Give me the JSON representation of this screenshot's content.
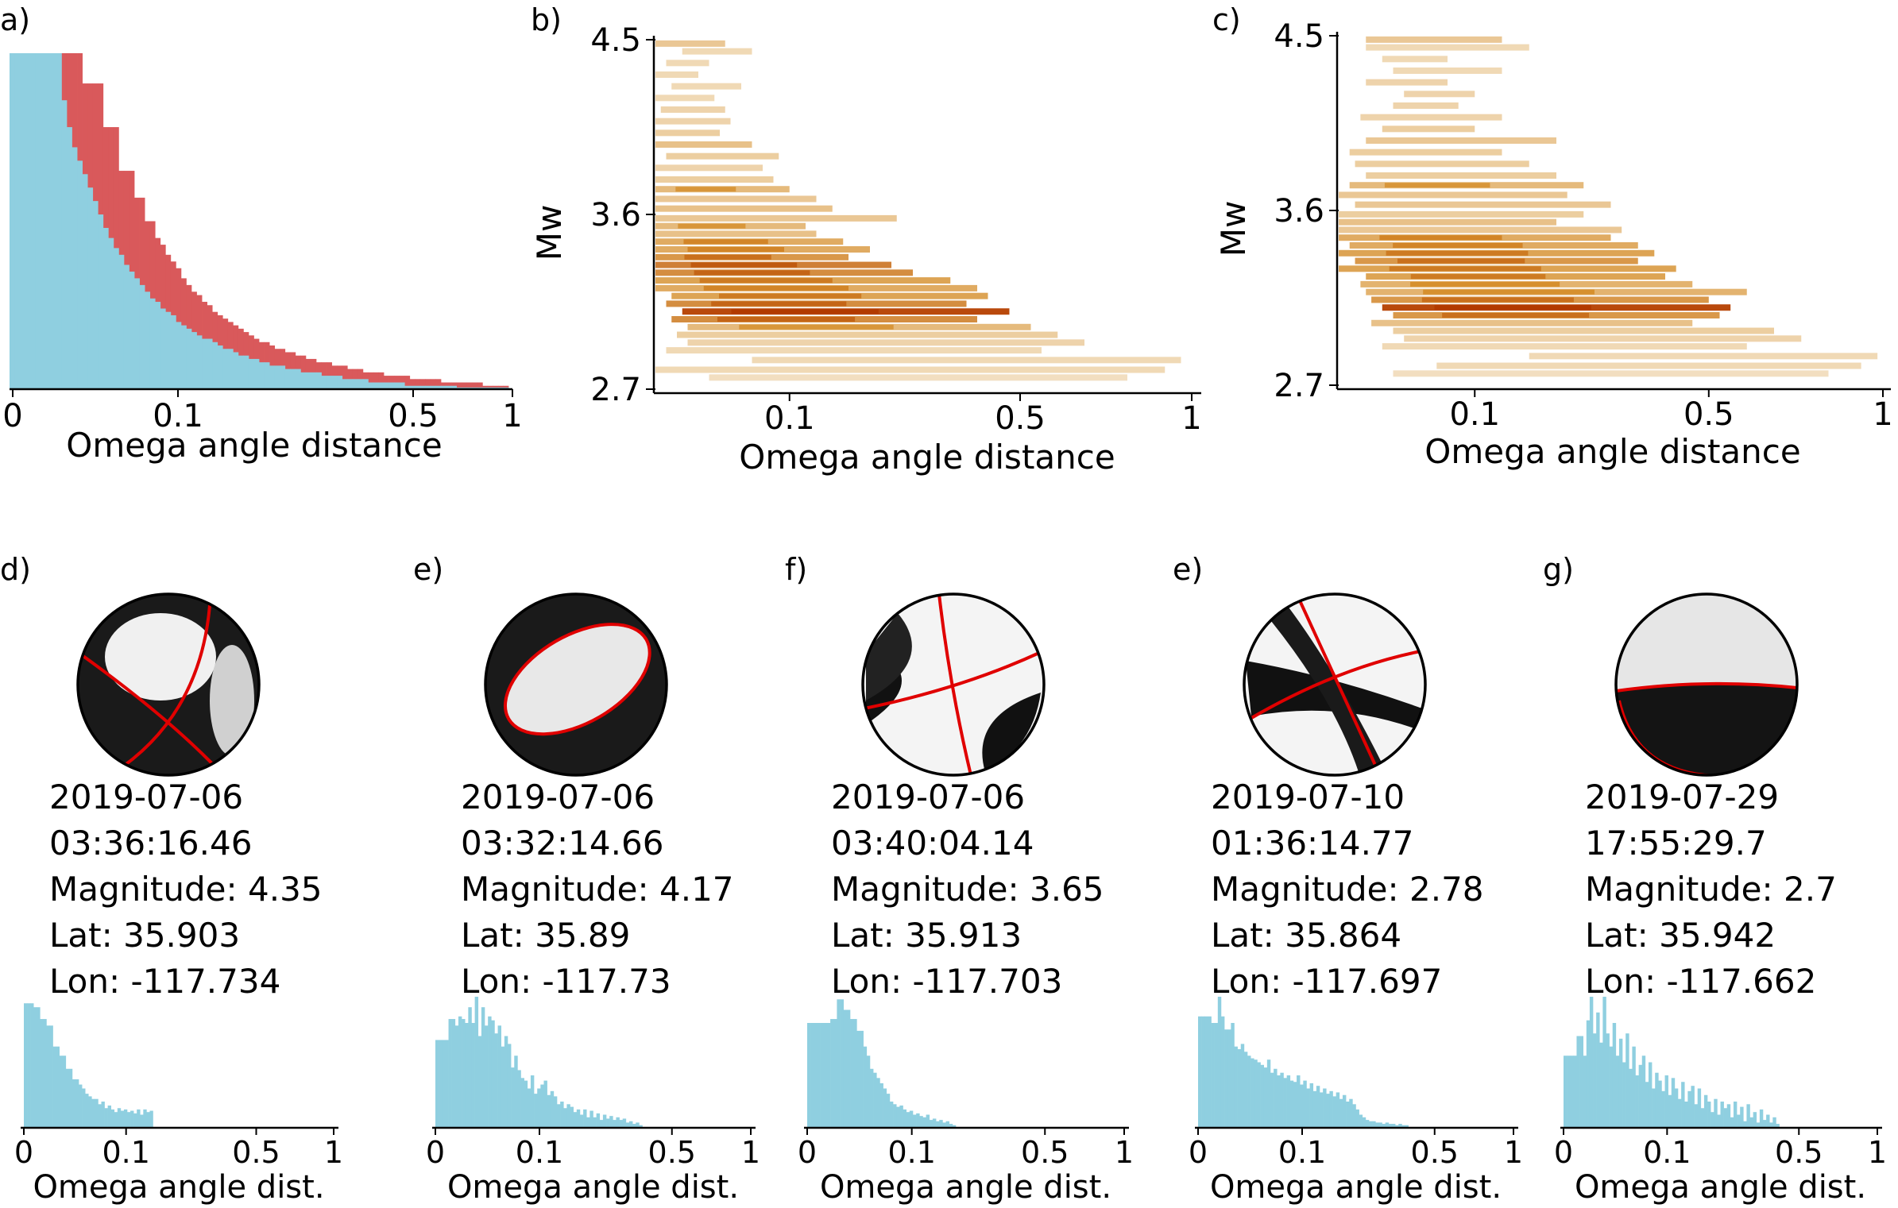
{
  "colors": {
    "hist_blue": "#8fcfe0",
    "hist_red": "#d9595b",
    "density_light": "#f1ddbb",
    "density_mid": "#d6902e",
    "density_dark": "#b23a00",
    "nodal_plane": "#e00000"
  },
  "chart_data": [
    {
      "id": "a",
      "panel_label": "a)",
      "type": "bar",
      "title": "",
      "xlabel": "Omega angle distance",
      "ylabel": "",
      "x_tick_labels": [
        "0",
        "0.1",
        "0.5",
        "1"
      ],
      "x_scale": "logit-like",
      "series": [
        {
          "name": "red",
          "color": "#d9595b",
          "values": [
            1.0,
            1.0,
            1.0,
            1.0,
            1.0,
            1.0,
            1.0,
            1.0,
            1.0,
            1.0,
            1.0,
            1.0,
            1.0,
            1.0,
            0.91,
            0.91,
            0.91,
            0.91,
            0.78,
            0.78,
            0.78,
            0.65,
            0.65,
            0.65,
            0.57,
            0.57,
            0.5,
            0.5,
            0.45,
            0.43,
            0.4,
            0.38,
            0.36,
            0.33,
            0.31,
            0.29,
            0.28,
            0.26,
            0.25,
            0.23,
            0.22,
            0.21,
            0.2,
            0.19,
            0.18,
            0.17,
            0.16,
            0.15,
            0.14,
            0.14,
            0.13,
            0.12,
            0.12,
            0.11,
            0.11,
            0.1,
            0.1,
            0.09,
            0.09,
            0.08,
            0.08,
            0.08,
            0.07,
            0.07,
            0.07,
            0.06,
            0.06,
            0.06,
            0.05,
            0.05,
            0.05,
            0.05,
            0.04,
            0.04,
            0.04,
            0.04,
            0.04,
            0.03,
            0.03,
            0.03,
            0.03,
            0.03,
            0.03,
            0.02,
            0.02,
            0.02,
            0.02,
            0.02,
            0.02,
            0.02,
            0.02,
            0.01,
            0.01,
            0.01,
            0.01,
            0.01
          ]
        },
        {
          "name": "blue",
          "color": "#8fcfe0",
          "values": [
            1.0,
            1.0,
            1.0,
            1.0,
            1.0,
            1.0,
            1.0,
            1.0,
            1.0,
            1.0,
            0.86,
            0.78,
            0.72,
            0.68,
            0.64,
            0.6,
            0.56,
            0.52,
            0.48,
            0.45,
            0.42,
            0.4,
            0.37,
            0.35,
            0.33,
            0.31,
            0.29,
            0.27,
            0.26,
            0.24,
            0.23,
            0.22,
            0.2,
            0.19,
            0.18,
            0.17,
            0.16,
            0.15,
            0.15,
            0.14,
            0.13,
            0.12,
            0.12,
            0.11,
            0.1,
            0.1,
            0.09,
            0.09,
            0.08,
            0.08,
            0.07,
            0.07,
            0.07,
            0.06,
            0.06,
            0.06,
            0.05,
            0.05,
            0.05,
            0.05,
            0.04,
            0.04,
            0.04,
            0.04,
            0.03,
            0.03,
            0.03,
            0.03,
            0.03,
            0.02,
            0.02,
            0.02,
            0.02,
            0.02,
            0.02,
            0.02,
            0.01,
            0.01,
            0.01,
            0.01,
            0.01,
            0.01,
            0.01,
            0.01,
            0.01,
            0.01,
            0.005,
            0.005,
            0.005,
            0.005,
            0.005,
            0.005,
            0.005,
            0.005,
            0.005,
            0.005
          ]
        }
      ]
    },
    {
      "id": "b",
      "panel_label": "b)",
      "type": "heatmap",
      "xlabel": "Omega angle distance",
      "ylabel": "Mw",
      "x_tick_labels": [
        "0.1",
        "0.5",
        "1"
      ],
      "y_tick_labels": [
        "4.5",
        "3.6",
        "2.7"
      ],
      "ylim": [
        2.7,
        4.5
      ],
      "rows": [
        {
          "mw": 4.48,
          "x0": 0.0,
          "x1": 0.13,
          "w": 0.35
        },
        {
          "mw": 4.44,
          "x0": 0.05,
          "x1": 0.18,
          "w": 0.2
        },
        {
          "mw": 4.38,
          "x0": 0.02,
          "x1": 0.1,
          "w": 0.2
        },
        {
          "mw": 4.32,
          "x0": 0.0,
          "x1": 0.08,
          "w": 0.2
        },
        {
          "mw": 4.26,
          "x0": 0.03,
          "x1": 0.16,
          "w": 0.2
        },
        {
          "mw": 4.2,
          "x0": 0.0,
          "x1": 0.11,
          "w": 0.2
        },
        {
          "mw": 4.14,
          "x0": 0.01,
          "x1": 0.13,
          "w": 0.25
        },
        {
          "mw": 4.08,
          "x0": 0.0,
          "x1": 0.14,
          "w": 0.25
        },
        {
          "mw": 4.02,
          "x0": 0.0,
          "x1": 0.12,
          "w": 0.3
        },
        {
          "mw": 3.96,
          "x0": 0.0,
          "x1": 0.18,
          "w": 0.4
        },
        {
          "mw": 3.9,
          "x0": 0.02,
          "x1": 0.23,
          "w": 0.3
        },
        {
          "mw": 3.84,
          "x0": 0.0,
          "x1": 0.2,
          "w": 0.25
        },
        {
          "mw": 3.78,
          "x0": 0.0,
          "x1": 0.22,
          "w": 0.3
        },
        {
          "mw": 3.73,
          "x0": 0.0,
          "x1": 0.25,
          "w": 0.45
        },
        {
          "mw": 3.68,
          "x0": 0.0,
          "x1": 0.3,
          "w": 0.35
        },
        {
          "mw": 3.63,
          "x0": 0.0,
          "x1": 0.33,
          "w": 0.4
        },
        {
          "mw": 3.58,
          "x0": 0.0,
          "x1": 0.45,
          "w": 0.35
        },
        {
          "mw": 3.54,
          "x0": 0.0,
          "x1": 0.28,
          "w": 0.45
        },
        {
          "mw": 3.5,
          "x0": 0.0,
          "x1": 0.3,
          "w": 0.4
        },
        {
          "mw": 3.46,
          "x0": 0.0,
          "x1": 0.35,
          "w": 0.55
        },
        {
          "mw": 3.42,
          "x0": 0.0,
          "x1": 0.4,
          "w": 0.55
        },
        {
          "mw": 3.38,
          "x0": 0.0,
          "x1": 0.36,
          "w": 0.65
        },
        {
          "mw": 3.34,
          "x0": 0.0,
          "x1": 0.44,
          "w": 0.75
        },
        {
          "mw": 3.3,
          "x0": 0.0,
          "x1": 0.48,
          "w": 0.7
        },
        {
          "mw": 3.26,
          "x0": 0.0,
          "x1": 0.55,
          "w": 0.6
        },
        {
          "mw": 3.22,
          "x0": 0.0,
          "x1": 0.6,
          "w": 0.55
        },
        {
          "mw": 3.18,
          "x0": 0.03,
          "x1": 0.62,
          "w": 0.6
        },
        {
          "mw": 3.14,
          "x0": 0.02,
          "x1": 0.58,
          "w": 0.7
        },
        {
          "mw": 3.1,
          "x0": 0.05,
          "x1": 0.66,
          "w": 0.95
        },
        {
          "mw": 3.06,
          "x0": 0.03,
          "x1": 0.6,
          "w": 0.7
        },
        {
          "mw": 3.02,
          "x0": 0.06,
          "x1": 0.7,
          "w": 0.45
        },
        {
          "mw": 2.98,
          "x0": 0.04,
          "x1": 0.75,
          "w": 0.3
        },
        {
          "mw": 2.94,
          "x0": 0.06,
          "x1": 0.8,
          "w": 0.25
        },
        {
          "mw": 2.9,
          "x0": 0.02,
          "x1": 0.72,
          "w": 0.2
        },
        {
          "mw": 2.85,
          "x0": 0.18,
          "x1": 0.98,
          "w": 0.2
        },
        {
          "mw": 2.8,
          "x0": 0.0,
          "x1": 0.95,
          "w": 0.2
        },
        {
          "mw": 2.76,
          "x0": 0.1,
          "x1": 0.88,
          "w": 0.15
        }
      ]
    },
    {
      "id": "c",
      "panel_label": "c)",
      "type": "heatmap",
      "xlabel": "Omega angle distance",
      "ylabel": "Mw",
      "x_tick_labels": [
        "0.1",
        "0.5",
        "1"
      ],
      "y_tick_labels": [
        "4.5",
        "3.6",
        "2.7"
      ],
      "ylim": [
        2.7,
        4.5
      ],
      "rows": [
        {
          "mw": 4.48,
          "x0": 0.05,
          "x1": 0.3,
          "w": 0.35
        },
        {
          "mw": 4.44,
          "x0": 0.05,
          "x1": 0.35,
          "w": 0.2
        },
        {
          "mw": 4.38,
          "x0": 0.08,
          "x1": 0.2,
          "w": 0.2
        },
        {
          "mw": 4.32,
          "x0": 0.1,
          "x1": 0.3,
          "w": 0.2
        },
        {
          "mw": 4.26,
          "x0": 0.05,
          "x1": 0.2,
          "w": 0.25
        },
        {
          "mw": 4.2,
          "x0": 0.12,
          "x1": 0.25,
          "w": 0.25
        },
        {
          "mw": 4.14,
          "x0": 0.1,
          "x1": 0.22,
          "w": 0.25
        },
        {
          "mw": 4.08,
          "x0": 0.04,
          "x1": 0.3,
          "w": 0.25
        },
        {
          "mw": 4.02,
          "x0": 0.08,
          "x1": 0.25,
          "w": 0.3
        },
        {
          "mw": 3.96,
          "x0": 0.05,
          "x1": 0.4,
          "w": 0.35
        },
        {
          "mw": 3.9,
          "x0": 0.02,
          "x1": 0.3,
          "w": 0.3
        },
        {
          "mw": 3.84,
          "x0": 0.03,
          "x1": 0.35,
          "w": 0.3
        },
        {
          "mw": 3.78,
          "x0": 0.05,
          "x1": 0.4,
          "w": 0.3
        },
        {
          "mw": 3.73,
          "x0": 0.02,
          "x1": 0.45,
          "w": 0.45
        },
        {
          "mw": 3.68,
          "x0": 0.0,
          "x1": 0.42,
          "w": 0.35
        },
        {
          "mw": 3.63,
          "x0": 0.03,
          "x1": 0.5,
          "w": 0.35
        },
        {
          "mw": 3.58,
          "x0": 0.0,
          "x1": 0.45,
          "w": 0.3
        },
        {
          "mw": 3.54,
          "x0": 0.0,
          "x1": 0.4,
          "w": 0.4
        },
        {
          "mw": 3.5,
          "x0": 0.0,
          "x1": 0.52,
          "w": 0.35
        },
        {
          "mw": 3.46,
          "x0": 0.0,
          "x1": 0.5,
          "w": 0.55
        },
        {
          "mw": 3.42,
          "x0": 0.02,
          "x1": 0.55,
          "w": 0.55
        },
        {
          "mw": 3.38,
          "x0": 0.0,
          "x1": 0.58,
          "w": 0.6
        },
        {
          "mw": 3.34,
          "x0": 0.03,
          "x1": 0.55,
          "w": 0.65
        },
        {
          "mw": 3.3,
          "x0": 0.0,
          "x1": 0.62,
          "w": 0.6
        },
        {
          "mw": 3.26,
          "x0": 0.05,
          "x1": 0.6,
          "w": 0.6
        },
        {
          "mw": 3.22,
          "x0": 0.04,
          "x1": 0.65,
          "w": 0.5
        },
        {
          "mw": 3.18,
          "x0": 0.05,
          "x1": 0.75,
          "w": 0.5
        },
        {
          "mw": 3.14,
          "x0": 0.06,
          "x1": 0.68,
          "w": 0.65
        },
        {
          "mw": 3.1,
          "x0": 0.08,
          "x1": 0.72,
          "w": 0.95
        },
        {
          "mw": 3.06,
          "x0": 0.1,
          "x1": 0.7,
          "w": 0.65
        },
        {
          "mw": 3.02,
          "x0": 0.06,
          "x1": 0.65,
          "w": 0.4
        },
        {
          "mw": 2.98,
          "x0": 0.1,
          "x1": 0.8,
          "w": 0.3
        },
        {
          "mw": 2.94,
          "x0": 0.12,
          "x1": 0.85,
          "w": 0.25
        },
        {
          "mw": 2.9,
          "x0": 0.08,
          "x1": 0.75,
          "w": 0.2
        },
        {
          "mw": 2.85,
          "x0": 0.35,
          "x1": 0.99,
          "w": 0.2
        },
        {
          "mw": 2.8,
          "x0": 0.18,
          "x1": 0.96,
          "w": 0.2
        },
        {
          "mw": 2.76,
          "x0": 0.1,
          "x1": 0.9,
          "w": 0.15
        }
      ]
    },
    {
      "id": "d",
      "panel_label": "d)",
      "type": "bar",
      "xlabel": "Omega angle dist.",
      "x_tick_labels": [
        "0",
        "0.1",
        "0.5",
        "1"
      ],
      "date": "2019-07-06",
      "time": "03:36:16.46",
      "magnitude": "Magnitude: 4.35",
      "lat": "Lat: 35.903",
      "lon": "Lon: -117.734",
      "values": [
        0.95,
        0.95,
        0.95,
        0.92,
        0.92,
        0.83,
        0.83,
        0.78,
        0.78,
        0.62,
        0.62,
        0.55,
        0.55,
        0.45,
        0.45,
        0.37,
        0.37,
        0.33,
        0.3,
        0.26,
        0.24,
        0.22,
        0.22,
        0.18,
        0.2,
        0.15,
        0.17,
        0.14,
        0.12,
        0.15,
        0.13,
        0.14,
        0.12,
        0.13,
        0.11,
        0.14,
        0.1,
        0.14,
        0.12,
        0.13
      ]
    },
    {
      "id": "e",
      "panel_label": "e)",
      "type": "bar",
      "xlabel": "Omega angle dist.",
      "x_tick_labels": [
        "0",
        "0.1",
        "0.5",
        "1"
      ],
      "date": "2019-07-06",
      "time": "03:32:14.66",
      "magnitude": "Magnitude: 4.17",
      "lat": "Lat: 35.89",
      "lon": "Lon: -117.73",
      "values": [
        0.67,
        0.67,
        0.67,
        0.67,
        0.83,
        0.83,
        0.78,
        0.85,
        0.83,
        0.8,
        0.92,
        0.8,
        1.0,
        0.7,
        0.92,
        0.78,
        0.85,
        0.82,
        0.72,
        0.78,
        0.62,
        0.7,
        0.64,
        0.46,
        0.55,
        0.44,
        0.38,
        0.36,
        0.3,
        0.4,
        0.26,
        0.3,
        0.33,
        0.36,
        0.25,
        0.28,
        0.24,
        0.18,
        0.2,
        0.15,
        0.18,
        0.16,
        0.12,
        0.14,
        0.1,
        0.14,
        0.08,
        0.13,
        0.08,
        0.11,
        0.06,
        0.1,
        0.07,
        0.09,
        0.06,
        0.08,
        0.06,
        0.07,
        0.04,
        0.05,
        0.03,
        0.04,
        0.02
      ]
    },
    {
      "id": "f",
      "panel_label": "f)",
      "type": "bar",
      "xlabel": "Omega angle dist.",
      "x_tick_labels": [
        "0",
        "0.1",
        "0.5",
        "1"
      ],
      "date": "2019-07-06",
      "time": "03:40:04.14",
      "magnitude": "Magnitude: 3.65",
      "lat": "Lat: 35.913",
      "lon": "Lon: -117.703",
      "values": [
        0.8,
        0.8,
        0.8,
        0.8,
        0.8,
        0.8,
        0.8,
        0.83,
        0.83,
        0.98,
        0.98,
        0.9,
        0.9,
        0.83,
        0.83,
        0.74,
        0.74,
        0.62,
        0.55,
        0.45,
        0.42,
        0.38,
        0.34,
        0.3,
        0.26,
        0.2,
        0.18,
        0.16,
        0.17,
        0.14,
        0.12,
        0.13,
        0.1,
        0.11,
        0.09,
        0.08,
        0.1,
        0.06,
        0.07,
        0.05,
        0.06,
        0.04,
        0.05,
        0.03,
        0.02
      ]
    },
    {
      "id": "g1",
      "panel_label": "e)",
      "type": "bar",
      "xlabel": "Omega angle dist.",
      "x_tick_labels": [
        "0",
        "0.1",
        "0.5",
        "1"
      ],
      "date": "2019-07-10",
      "time": "01:36:14.77",
      "magnitude": "Magnitude: 2.78",
      "lat": "Lat: 35.864",
      "lon": "Lon: -117.697",
      "values": [
        0.85,
        0.85,
        0.85,
        0.85,
        0.8,
        0.8,
        1.0,
        0.85,
        0.75,
        0.75,
        0.8,
        0.62,
        0.6,
        0.64,
        0.58,
        0.55,
        0.53,
        0.52,
        0.5,
        0.48,
        0.46,
        0.52,
        0.42,
        0.45,
        0.4,
        0.42,
        0.38,
        0.4,
        0.36,
        0.35,
        0.4,
        0.33,
        0.36,
        0.3,
        0.34,
        0.28,
        0.32,
        0.27,
        0.3,
        0.26,
        0.28,
        0.24,
        0.27,
        0.22,
        0.25,
        0.2,
        0.22,
        0.18,
        0.14,
        0.1,
        0.08,
        0.06,
        0.05,
        0.05,
        0.04,
        0.04,
        0.03,
        0.04,
        0.03,
        0.03,
        0.02,
        0.03,
        0.02,
        0.02
      ]
    },
    {
      "id": "g",
      "panel_label": "g)",
      "type": "bar",
      "xlabel": "Omega angle dist.",
      "x_tick_labels": [
        "0",
        "0.1",
        "0.5",
        "1"
      ],
      "date": "2019-07-29",
      "time": "17:55:29.7",
      "magnitude": "Magnitude: 2.7",
      "lat": "Lat: 35.942",
      "lon": "Lon: -117.662",
      "values": [
        0.55,
        0.55,
        0.55,
        0.55,
        0.7,
        0.7,
        0.55,
        0.82,
        1.0,
        0.72,
        0.88,
        0.65,
        1.0,
        0.72,
        0.62,
        0.8,
        0.55,
        0.68,
        0.5,
        0.72,
        0.45,
        0.62,
        0.4,
        0.48,
        0.55,
        0.35,
        0.5,
        0.3,
        0.42,
        0.36,
        0.28,
        0.4,
        0.25,
        0.38,
        0.3,
        0.22,
        0.35,
        0.2,
        0.28,
        0.32,
        0.18,
        0.3,
        0.15,
        0.25,
        0.2,
        0.12,
        0.22,
        0.1,
        0.2,
        0.15,
        0.18,
        0.08,
        0.2,
        0.1,
        0.16,
        0.05,
        0.18,
        0.08,
        0.12,
        0.04,
        0.14,
        0.06,
        0.1,
        0.04,
        0.08,
        0.03
      ]
    }
  ]
}
